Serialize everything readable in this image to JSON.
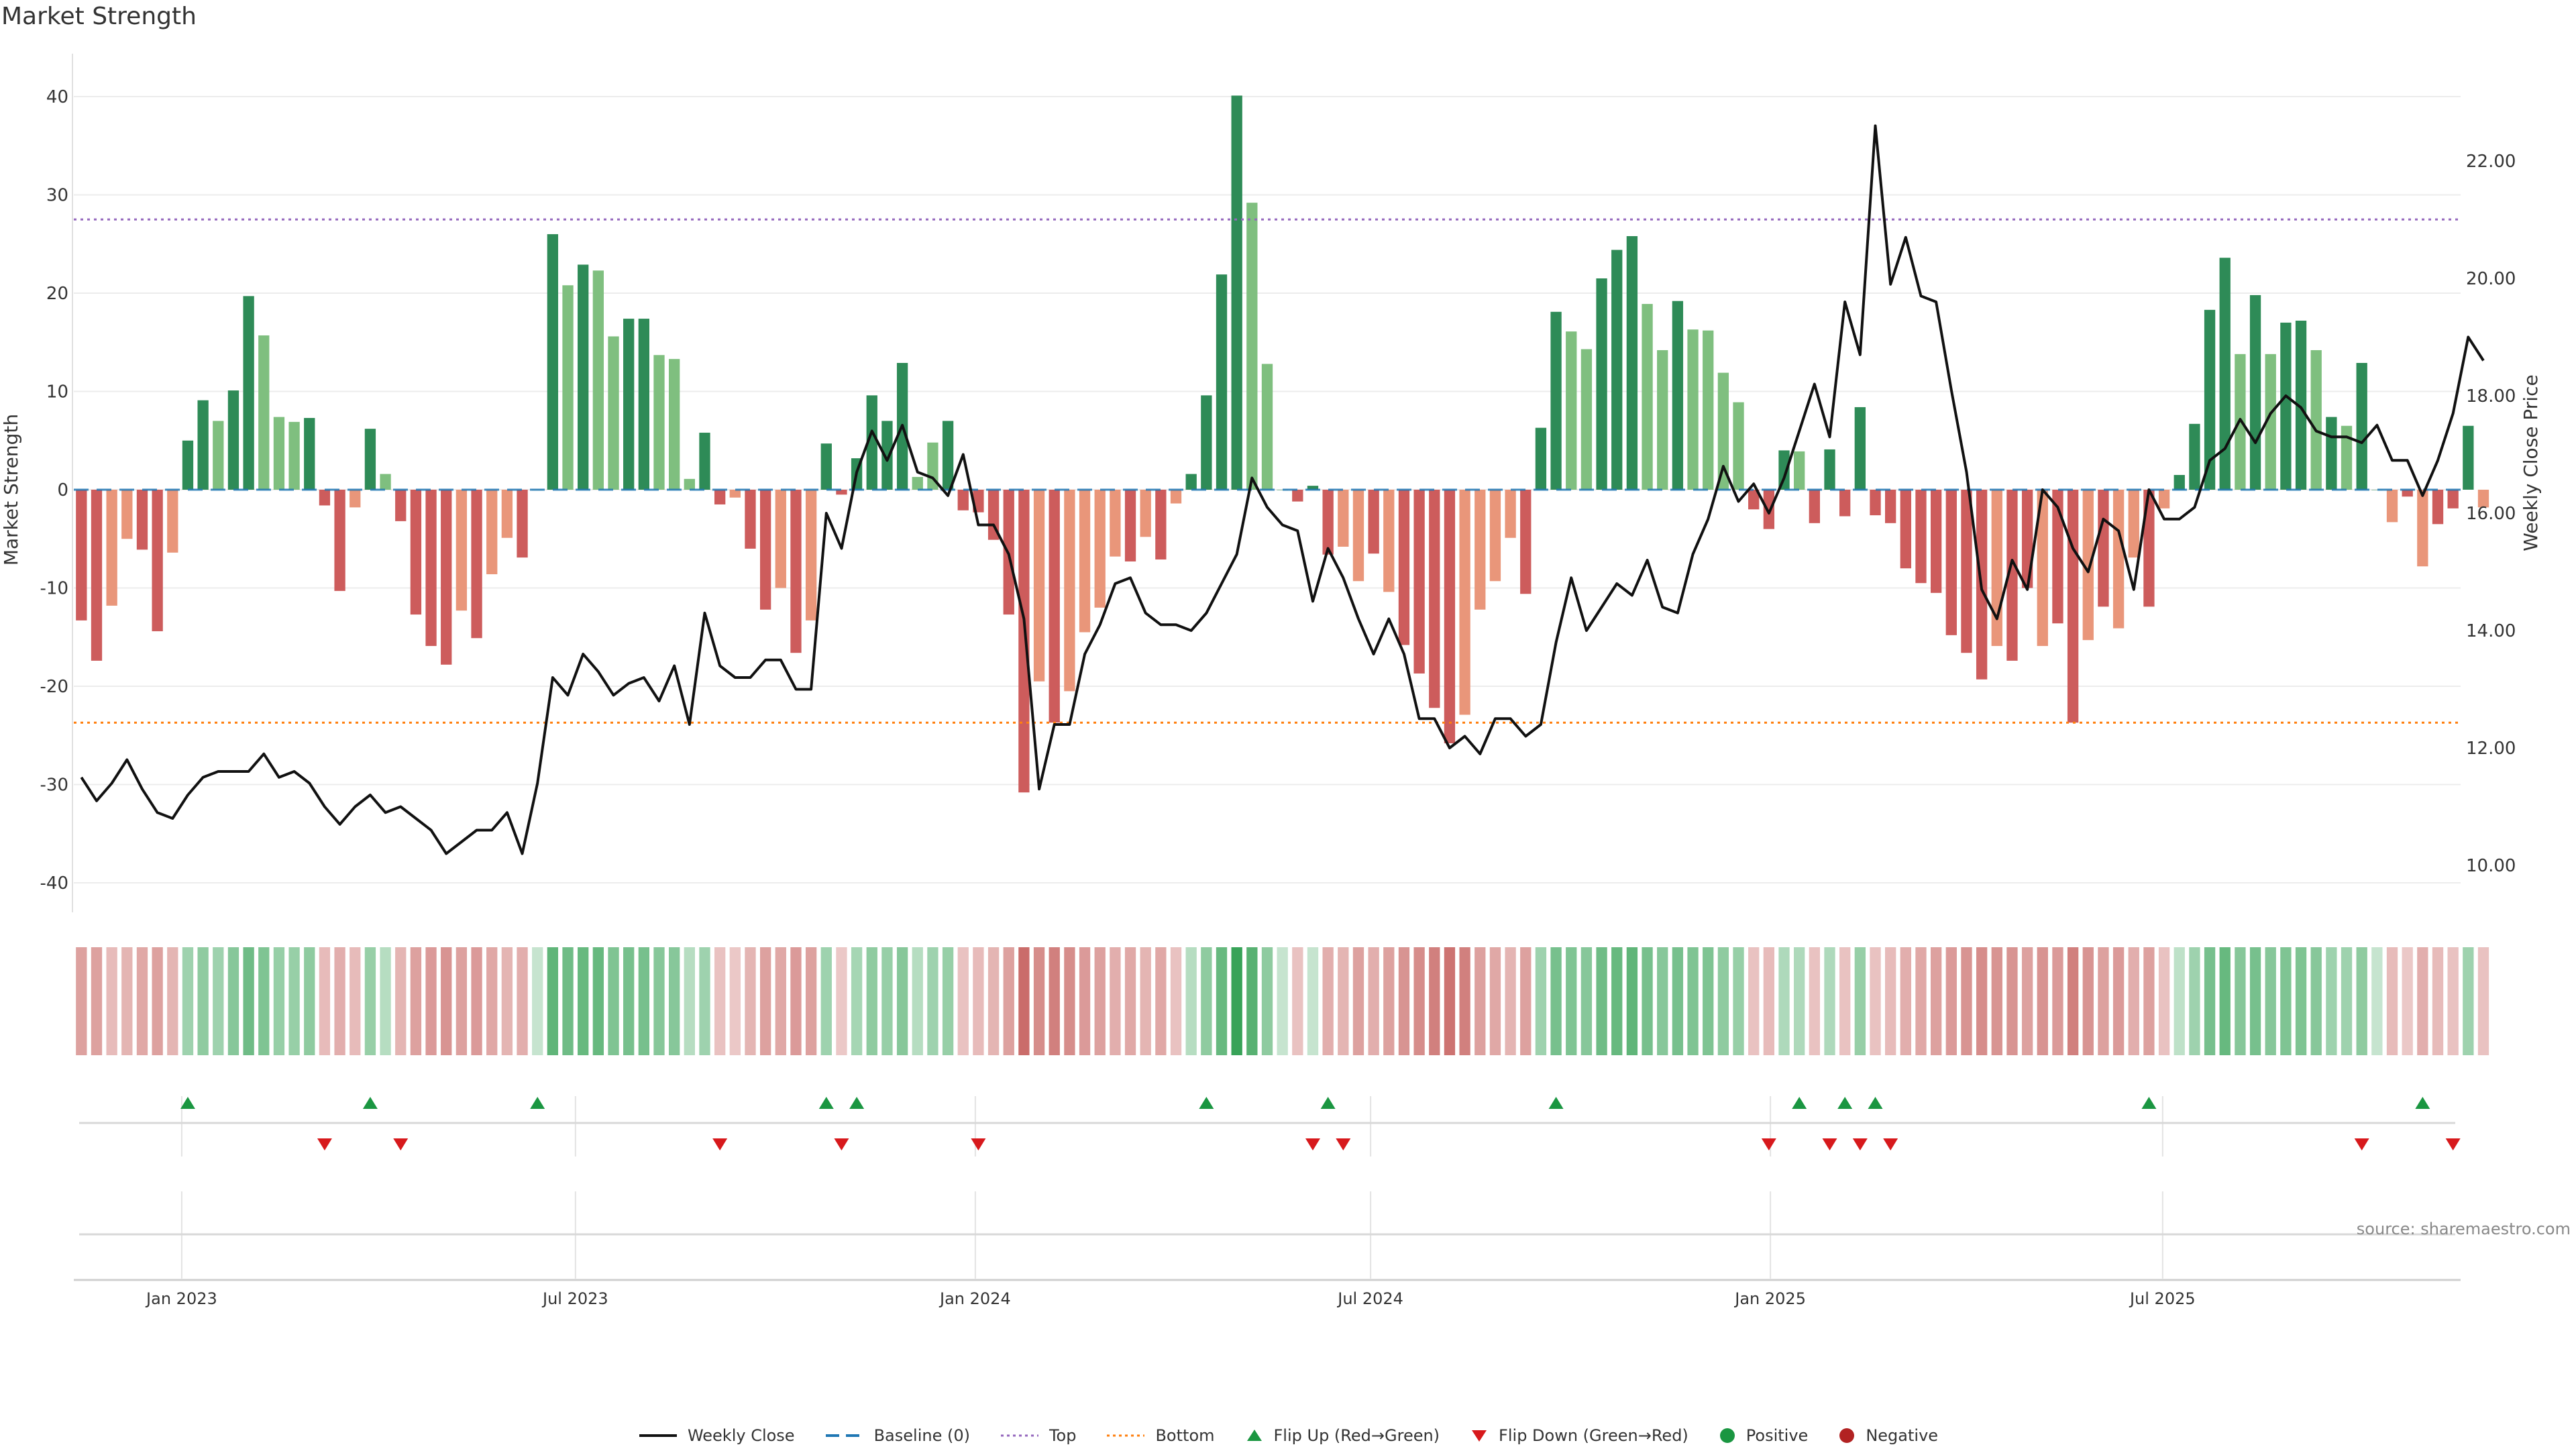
{
  "title": "Market Strength",
  "source_text": "source: sharemaestro.com",
  "colors": {
    "green_strong": "#2e8b57",
    "green_light": "#7fbf7f",
    "red_strong": "#cd5c5c",
    "red_light": "#e9967a",
    "price_line": "#111111",
    "baseline": "#1f77b4",
    "top": "#9467bd",
    "bottom": "#ff7f0e",
    "flip_up": "#1a9641",
    "flip_down": "#d7191c"
  },
  "legend": [
    {
      "label": "Weekly Close",
      "kind": "line"
    },
    {
      "label": "Baseline (0)",
      "kind": "dashed"
    },
    {
      "label": "Top",
      "kind": "dotted-top"
    },
    {
      "label": "Bottom",
      "kind": "dotted-bottom"
    },
    {
      "label": "Flip Up (Red→Green)",
      "kind": "tri-up"
    },
    {
      "label": "Flip Down (Green→Red)",
      "kind": "tri-down"
    },
    {
      "label": "Positive",
      "kind": "dot-pos"
    },
    {
      "label": "Negative",
      "kind": "dot-neg"
    }
  ],
  "chart_data": {
    "type": "bar",
    "title": "Market Strength",
    "ylabel": "Market Strength",
    "y2label": "Weekly Close Price",
    "ylim": [
      -43,
      43
    ],
    "yticks": [
      -40,
      -30,
      -20,
      -10,
      0,
      10,
      20,
      30,
      40
    ],
    "y2lim": [
      9.2,
      23.6
    ],
    "y2ticks": [
      "10.00",
      "12.00",
      "14.00",
      "16.00",
      "18.00",
      "20.00",
      "22.00"
    ],
    "top_line": 27.5,
    "bottom_line": -23.7,
    "xlim_weeks": [
      0,
      157
    ],
    "x_ticks": [
      {
        "label": "Jan 2023",
        "week": 7.1
      },
      {
        "label": "Jul 2023",
        "week": 33
      },
      {
        "label": "Jan 2024",
        "week": 59.3
      },
      {
        "label": "Jul 2024",
        "week": 85.3
      },
      {
        "label": "Jan 2025",
        "week": 111.6
      },
      {
        "label": "Jul 2025",
        "week": 137.4
      }
    ],
    "strength": [
      -13.3,
      -17.4,
      -11.8,
      -5,
      -6.1,
      -14.4,
      -6.4,
      5,
      9.1,
      7,
      10.1,
      19.7,
      15.7,
      7.4,
      6.9,
      7.3,
      -1.6,
      -10.3,
      -1.8,
      6.2,
      1.6,
      -3.2,
      -12.7,
      -15.9,
      -17.8,
      -12.3,
      -15.1,
      -8.6,
      -4.9,
      -6.9,
      0,
      26,
      20.8,
      22.9,
      22.3,
      15.6,
      17.4,
      17.4,
      13.7,
      13.3,
      1.1,
      5.8,
      -1.5,
      -0.8,
      -6,
      -12.2,
      -10,
      -16.6,
      -13.3,
      4.7,
      -0.5,
      3.2,
      9.6,
      7,
      12.9,
      1.3,
      4.8,
      7,
      -2.1,
      -2.3,
      -5.1,
      -12.7,
      -30.8,
      -19.5,
      -23.7,
      -20.5,
      -14.5,
      -12,
      -6.8,
      -7.3,
      -4.8,
      -7.1,
      -1.4,
      1.6,
      9.6,
      21.9,
      40.1,
      29.2,
      12.8,
      0,
      -1.2,
      0.4,
      -6.6,
      -5.8,
      -9.3,
      -6.5,
      -10.4,
      -15.8,
      -18.7,
      -22.2,
      -25.8,
      -22.9,
      -12.2,
      -9.3,
      -4.9,
      -10.6,
      6.3,
      18.1,
      16.1,
      14.3,
      21.5,
      24.4,
      25.8,
      18.9,
      14.2,
      19.2,
      16.3,
      16.2,
      11.9,
      8.9,
      -2,
      -4,
      4,
      3.9,
      -3.4,
      4.1,
      -2.7,
      8.4,
      -2.6,
      -3.4,
      -8,
      -9.5,
      -10.5,
      -14.8,
      -16.6,
      -19.3,
      -15.9,
      -17.4,
      -10,
      -15.9,
      -13.6,
      -23.7,
      -15.3,
      -11.9,
      -14.1,
      -6.9,
      -11.9,
      -1.9,
      1.5,
      6.7,
      18.3,
      23.6,
      13.8,
      19.8,
      13.8,
      17,
      17.2,
      14.2,
      7.4,
      6.5,
      12.9,
      0,
      -3.3,
      -0.7,
      -7.8,
      -3.5,
      -1.9,
      6.5,
      -1.8
    ],
    "strength_style": [
      "s",
      "s",
      "l",
      "l",
      "s",
      "s",
      "l",
      "s",
      "s",
      "l",
      "s",
      "s",
      "l",
      "l",
      "l",
      "s",
      "s",
      "s",
      "l",
      "s",
      "l",
      "s",
      "s",
      "s",
      "s",
      "l",
      "s",
      "l",
      "l",
      "s",
      "s",
      "s",
      "l",
      "s",
      "l",
      "l",
      "s",
      "s",
      "l",
      "l",
      "l",
      "s",
      "s",
      "l",
      "s",
      "s",
      "l",
      "s",
      "l",
      "s",
      "s",
      "s",
      "s",
      "s",
      "s",
      "l",
      "l",
      "s",
      "s",
      "s",
      "s",
      "s",
      "s",
      "l",
      "s",
      "l",
      "l",
      "l",
      "l",
      "s",
      "l",
      "s",
      "l",
      "s",
      "s",
      "s",
      "s",
      "l",
      "l",
      "s",
      "s",
      "s",
      "s",
      "l",
      "l",
      "s",
      "l",
      "s",
      "s",
      "s",
      "s",
      "l",
      "l",
      "l",
      "l",
      "s",
      "s",
      "s",
      "l",
      "l",
      "s",
      "s",
      "s",
      "l",
      "l",
      "s",
      "l",
      "l",
      "l",
      "l",
      "s",
      "s",
      "s",
      "l",
      "s",
      "s",
      "s",
      "s",
      "s",
      "s",
      "s",
      "s",
      "s",
      "s",
      "s",
      "s",
      "l",
      "s",
      "s",
      "l",
      "s",
      "s",
      "l",
      "s",
      "l",
      "l",
      "s",
      "l",
      "s",
      "s",
      "s",
      "s",
      "l",
      "s",
      "l",
      "s",
      "s",
      "l",
      "s",
      "l",
      "s",
      "s",
      "l",
      "s",
      "l",
      "s",
      "s",
      "s"
    ],
    "price": [
      11.5,
      11.1,
      11.4,
      11.8,
      11.3,
      10.9,
      10.8,
      11.2,
      11.5,
      11.6,
      11.6,
      11.6,
      11.9,
      11.5,
      11.6,
      11.4,
      11.0,
      10.7,
      11.0,
      11.2,
      10.9,
      11.0,
      10.8,
      10.6,
      10.2,
      10.4,
      10.6,
      10.6,
      10.9,
      10.2,
      11.4,
      13.2,
      12.9,
      13.6,
      13.3,
      12.9,
      13.1,
      13.2,
      12.8,
      13.4,
      12.4,
      14.3,
      13.4,
      13.2,
      13.2,
      13.5,
      13.5,
      13.0,
      13.0,
      16.0,
      15.4,
      16.7,
      17.4,
      16.9,
      17.5,
      16.7,
      16.6,
      16.3,
      17.0,
      15.8,
      15.8,
      15.3,
      14.2,
      11.3,
      12.4,
      12.4,
      13.6,
      14.1,
      14.8,
      14.9,
      14.3,
      14.1,
      14.1,
      14.0,
      14.3,
      14.8,
      15.3,
      16.6,
      16.1,
      15.8,
      15.7,
      14.5,
      15.4,
      14.9,
      14.2,
      13.6,
      14.2,
      13.6,
      12.5,
      12.5,
      12.0,
      12.2,
      11.9,
      12.5,
      12.5,
      12.2,
      12.4,
      13.8,
      14.9,
      14.0,
      14.4,
      14.8,
      14.6,
      15.2,
      14.4,
      14.3,
      15.3,
      15.9,
      16.8,
      16.2,
      16.5,
      16.0,
      16.6,
      17.4,
      18.2,
      17.3,
      19.6,
      18.7,
      22.6,
      19.9,
      20.7,
      19.7,
      19.6,
      18.1,
      16.7,
      14.7,
      14.2,
      15.2,
      14.7,
      16.4,
      16.1,
      15.4,
      15.0,
      15.9,
      15.7,
      14.7,
      16.4,
      15.9,
      15.9,
      16.1,
      16.9,
      17.1,
      17.6,
      17.2,
      17.7,
      18.0,
      17.8,
      17.4,
      17.3,
      17.3,
      17.2,
      17.5,
      16.9,
      16.9,
      16.3,
      16.9,
      17.7,
      19.0,
      18.6
    ],
    "heatmap_shade": [
      0.45,
      0.45,
      0.25,
      0.3,
      0.4,
      0.45,
      0.3,
      0.35,
      0.45,
      0.35,
      0.5,
      0.65,
      0.55,
      0.4,
      0.4,
      0.45,
      0.25,
      0.35,
      0.25,
      0.4,
      0.2,
      0.3,
      0.45,
      0.5,
      0.55,
      0.45,
      0.5,
      0.4,
      0.3,
      0.35,
      0.1,
      0.75,
      0.65,
      0.7,
      0.7,
      0.55,
      0.6,
      0.6,
      0.5,
      0.5,
      0.2,
      0.35,
      0.2,
      0.15,
      0.3,
      0.45,
      0.4,
      0.5,
      0.45,
      0.35,
      0.15,
      0.3,
      0.45,
      0.4,
      0.5,
      0.2,
      0.35,
      0.4,
      0.2,
      0.25,
      0.3,
      0.45,
      0.85,
      0.6,
      0.7,
      0.6,
      0.5,
      0.45,
      0.35,
      0.4,
      0.3,
      0.4,
      0.2,
      0.2,
      0.45,
      0.7,
      1.0,
      0.8,
      0.45,
      0.1,
      0.2,
      0.1,
      0.35,
      0.3,
      0.45,
      0.35,
      0.45,
      0.55,
      0.6,
      0.7,
      0.8,
      0.7,
      0.45,
      0.4,
      0.3,
      0.45,
      0.35,
      0.6,
      0.55,
      0.5,
      0.65,
      0.7,
      0.75,
      0.6,
      0.5,
      0.6,
      0.55,
      0.55,
      0.45,
      0.4,
      0.2,
      0.25,
      0.25,
      0.25,
      0.2,
      0.25,
      0.2,
      0.4,
      0.2,
      0.25,
      0.35,
      0.4,
      0.45,
      0.5,
      0.55,
      0.6,
      0.55,
      0.55,
      0.45,
      0.55,
      0.5,
      0.7,
      0.55,
      0.45,
      0.5,
      0.35,
      0.45,
      0.2,
      0.15,
      0.35,
      0.6,
      0.7,
      0.5,
      0.6,
      0.5,
      0.55,
      0.55,
      0.5,
      0.35,
      0.35,
      0.45,
      0.1,
      0.25,
      0.15,
      0.35,
      0.25,
      0.2,
      0.35,
      0.2
    ],
    "flip_up_weeks": [
      7,
      19,
      30,
      49,
      51,
      74,
      82,
      97,
      113,
      116,
      118,
      136,
      154
    ],
    "flip_down_weeks": [
      16,
      21,
      42,
      50,
      59,
      81,
      83,
      111,
      115,
      117,
      119,
      150,
      156
    ]
  }
}
